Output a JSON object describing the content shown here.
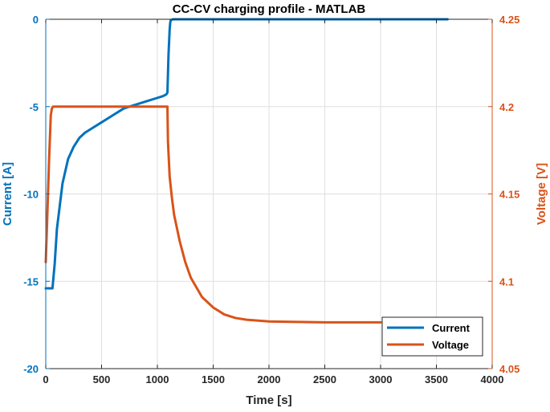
{
  "chart_data": {
    "type": "line",
    "title": "CC-CV charging profile - MATLAB",
    "xlabel": "Time [s]",
    "ylabel_left": "Current [A]",
    "ylabel_right": "Voltage [V]",
    "xlim": [
      0,
      4000
    ],
    "ylim_left": [
      -20,
      0
    ],
    "ylim_right": [
      4.05,
      4.25
    ],
    "xticks": [
      0,
      500,
      1000,
      1500,
      2000,
      2500,
      3000,
      3500,
      4000
    ],
    "yticks_left": [
      0,
      -5,
      -10,
      -15,
      -20
    ],
    "yticks_right": [
      4.25,
      4.2,
      4.15,
      4.1,
      4.05
    ],
    "ytick_labels_right": [
      "4.25",
      "4.2",
      "4.15",
      "4.1",
      "4.05"
    ],
    "grid": true,
    "legend_position": "bottom-right",
    "colors": {
      "current": "#0072BD",
      "voltage": "#D95319",
      "grid": "#DFDFDF",
      "axis_left": "#0072BD",
      "axis_right": "#D95319"
    },
    "series": [
      {
        "name": "Current",
        "axis": "left",
        "x": [
          0,
          30,
          35,
          60,
          80,
          100,
          150,
          200,
          250,
          300,
          350,
          400,
          500,
          600,
          700,
          800,
          900,
          1000,
          1050,
          1080,
          1090,
          1100,
          1110,
          1115,
          1120,
          1140,
          1200,
          1500,
          2000,
          2500,
          3000,
          3500,
          3600
        ],
        "y": [
          -15.4,
          -15.4,
          -15.4,
          -15.4,
          -14.0,
          -12.0,
          -9.4,
          -8.0,
          -7.3,
          -6.8,
          -6.5,
          -6.3,
          -5.9,
          -5.5,
          -5.1,
          -4.9,
          -4.7,
          -4.5,
          -4.4,
          -4.3,
          -4.2,
          -2.0,
          -0.6,
          -0.2,
          -0.05,
          0,
          0,
          0,
          0,
          0,
          0,
          0,
          0
        ]
      },
      {
        "name": "Voltage",
        "axis": "right",
        "x": [
          0,
          10,
          30,
          45,
          55,
          65,
          100,
          200,
          500,
          800,
          1000,
          1090,
          1095,
          1110,
          1130,
          1150,
          1200,
          1250,
          1300,
          1400,
          1500,
          1600,
          1700,
          1800,
          2000,
          2200,
          2500,
          3000
        ],
        "y": [
          4.111,
          4.13,
          4.17,
          4.195,
          4.199,
          4.2,
          4.2,
          4.2,
          4.2,
          4.2,
          4.2,
          4.2,
          4.18,
          4.16,
          4.148,
          4.138,
          4.123,
          4.111,
          4.102,
          4.091,
          4.085,
          4.081,
          4.079,
          4.078,
          4.077,
          4.0768,
          4.0765,
          4.0765
        ]
      }
    ]
  }
}
